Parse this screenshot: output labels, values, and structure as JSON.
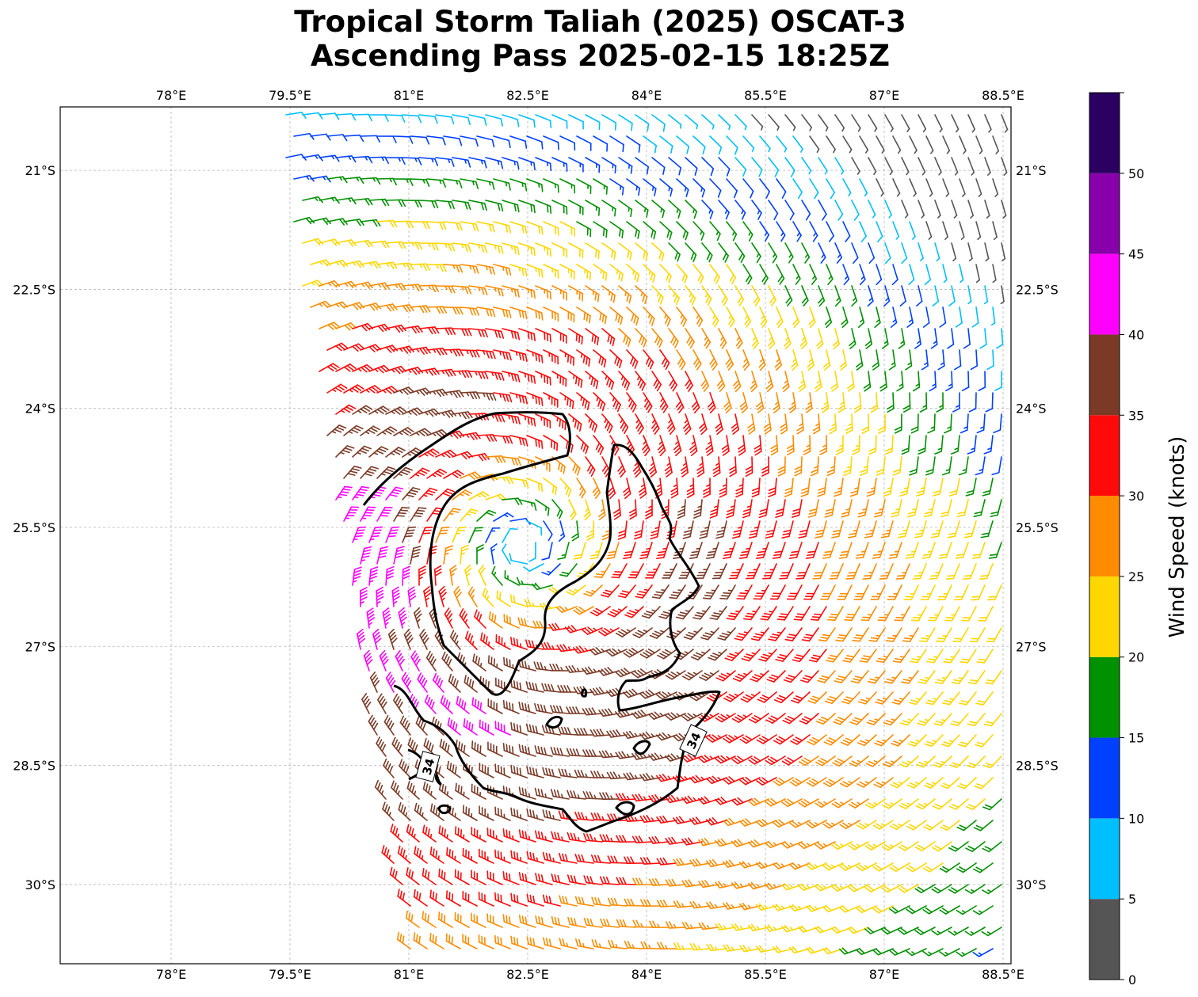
{
  "title": {
    "line1": "Tropical Storm Taliah (2025) OSCAT-3",
    "line2": "Ascending Pass 2025-02-15 18:25Z"
  },
  "map": {
    "lon_range": [
      76.6,
      88.6
    ],
    "lat_range": [
      -20.2,
      -31.0
    ],
    "lon_ticks": [
      {
        "value": 78.0,
        "label": "78°E"
      },
      {
        "value": 79.5,
        "label": "79.5°E"
      },
      {
        "value": 81.0,
        "label": "81°E"
      },
      {
        "value": 82.5,
        "label": "82.5°E"
      },
      {
        "value": 84.0,
        "label": "84°E"
      },
      {
        "value": 85.5,
        "label": "85.5°E"
      },
      {
        "value": 87.0,
        "label": "87°E"
      },
      {
        "value": 88.5,
        "label": "88.5°E"
      }
    ],
    "lat_ticks": [
      {
        "value": -21.0,
        "label": "21°S"
      },
      {
        "value": -22.5,
        "label": "22.5°S"
      },
      {
        "value": -24.0,
        "label": "24°S"
      },
      {
        "value": -25.5,
        "label": "25.5°S"
      },
      {
        "value": -27.0,
        "label": "27°S"
      },
      {
        "value": -28.5,
        "label": "28.5°S"
      },
      {
        "value": -30.0,
        "label": "30°S"
      }
    ],
    "gridlines": true,
    "storm_center": {
      "lon": 82.55,
      "lat": -25.9
    },
    "contour_level": 34,
    "contour_labels": [
      "34",
      "34"
    ],
    "wind_barbs": "OSCAT-3 scatterometer wind barbs colored by wind speed (cyclonic, clockwise circulation)"
  },
  "colorbar": {
    "title": "Wind Speed (knots)",
    "bins": [
      {
        "from": 0,
        "to": 5,
        "color": "#555555"
      },
      {
        "from": 5,
        "to": 10,
        "color": "#00bfff"
      },
      {
        "from": 10,
        "to": 15,
        "color": "#0040ff"
      },
      {
        "from": 15,
        "to": 20,
        "color": "#009100"
      },
      {
        "from": 20,
        "to": 25,
        "color": "#ffd700"
      },
      {
        "from": 25,
        "to": 30,
        "color": "#ff8c00"
      },
      {
        "from": 30,
        "to": 35,
        "color": "#ff0a0a"
      },
      {
        "from": 35,
        "to": 40,
        "color": "#7b3a26"
      },
      {
        "from": 40,
        "to": 45,
        "color": "#ff00ff"
      },
      {
        "from": 45,
        "to": 50,
        "color": "#8800aa"
      },
      {
        "from": 50,
        "to": 55,
        "color": "#2a0060"
      }
    ],
    "tick_labels": [
      "0",
      "5",
      "10",
      "15",
      "20",
      "25",
      "30",
      "35",
      "40",
      "45",
      "50"
    ]
  }
}
